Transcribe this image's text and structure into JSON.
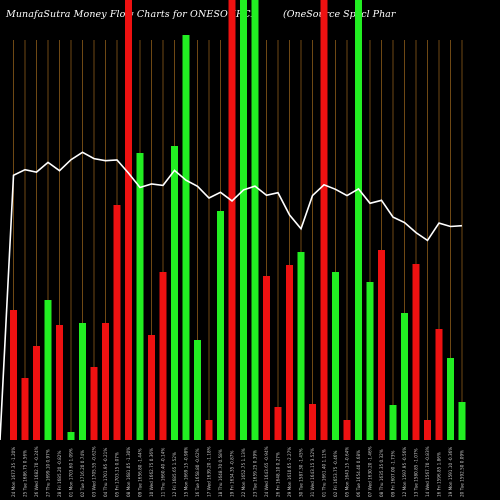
{
  "chart_data": {
    "type": "bar",
    "title": "MunafaSutra  Money Flow  Charts for ONESOURCE",
    "subtitle": "(OneSource   Specl Phar",
    "categories": [
      "Tue 20 Jan 2026",
      "Mon 19 Jan 2026",
      "Fri 16 Jan 2026",
      "Wed 14 Jan 2026",
      "Tue 13 Jan 2026",
      "Mon 12 Jan 2026",
      "Fri 09 Jan 2026",
      "Thu 08 Jan 2026",
      "Wed 07 Jan 2026",
      "Tue 06 Jan 2026",
      "Mon 05 Jan 2026",
      "Fri 02 Jan 2026",
      "Thu 01 Jan 2026",
      "Wed 31 Dec 2025",
      "Tue 30 Dec 2025",
      "Mon 29 Dec 2025",
      "Fri 26 Dec 2025",
      "Wed 24 Dec 2025",
      "Tue 23 Dec 2025",
      "Mon 22 Dec 2025",
      "Fri 19 Dec 2025",
      "Thu 18 Dec 2025",
      "Wed 17 Dec 2025",
      "Tue 16 Dec 2025",
      "Mon 15 Dec 2025",
      "Fri 12 Dec 2025",
      "Thu 11 Dec 2025",
      "Wed 10 Dec 2025",
      "Tue 09 Dec 2025",
      "Mon 08 Dec 2025",
      "Fri 05 Dec 2025",
      "Thu 04 Dec 2025",
      "Wed 03 Dec 2025",
      "Tue 02 Dec 2025",
      "Mon 01 Dec 2025",
      "Fri 28 Nov 2025",
      "Thu 27 Nov 2025",
      "Wed 26 Nov 2025",
      "Tue 25 Nov 2025",
      "Mon 24 Nov 2025"
    ],
    "tick_labels": [
      "20 Tue 1592.50 0.09%",
      "19 Mon 1591.10 -0.36%",
      "16 Fri 1596.85 1.86%",
      "14 Wed 1567.70 -0.83%",
      "13 Tue 1580.85 -1.07%",
      "12 Mon 1597.95 -0.56%",
      "09 Fri 1607.00 -1.73%",
      "08 Thu 1635.35 0.32%",
      "07 Wed 1630.20 -1.46%",
      "06 Tue 1654.40 0.68%",
      "05 Mon 1643.15 -0.64%",
      "02 Fri 1653.75 -0.46%",
      "01 Thu 1661.40 1.11%",
      "31 Wed 1643.15 3.52%",
      "30 Tue 1587.30 -1.45%",
      "29 Mon 1610.65 -2.27%",
      "26 Fri 1648.10 0.27%",
      "24 Wed 1643.65 -0.94%",
      "23 Tue 1659.25 0.39%",
      "22 Mon 1652.75 1.13%",
      "19 Fri 1634.35 -0.87%",
      "18 Thu 1648.70 0.58%",
      "17 Wed 1639.20 -1.18%",
      "16 Tue 1658.80 -0.62%",
      "15 Mon 1669.15 -0.98%",
      "12 Fri 1685.65 1.52%",
      "11 Thu 1660.40 -0.14%",
      "10 Wed 1662.75 0.36%",
      "09 Tue 1656.80 -1.44%",
      "08 Mon 1681.05 -1.30%",
      "05 Fri 1703.15 0.07%",
      "04 Thu 1701.95 -0.21%",
      "03 Wed 1705.55 -0.62%",
      "02 Tue 1716.20 0.74%",
      "01 Mon 1703.60 1.09%",
      "28 Fri 1685.20 -0.82%",
      "27 Thu 1699.10 0.97%",
      "26 Wed 1682.70 -0.24%",
      "25 Tue 1686.75 0.56%",
      "24 Mon 1677.35 -1.20%"
    ],
    "series": [
      {
        "values": [
          61,
          18,
          34,
          36,
          28,
          6,
          24,
          65,
          16,
          63,
          68,
          85,
          44,
          28,
          80,
          82,
          72,
          16,
          180,
          58,
          57,
          58,
          92,
          58,
          51,
          79,
          77,
          26,
          100,
          93,
          90,
          90,
          67,
          89,
          90,
          52,
          68,
          59,
          73,
          57
        ],
        "colors": [
          "red",
          "red",
          "red",
          "green",
          "red",
          "green",
          "green",
          "red",
          "red",
          "red",
          "red",
          "green",
          "red",
          "red",
          "green",
          "green",
          "green",
          "red",
          "green",
          "red",
          "green",
          "green",
          "red",
          "red",
          "red",
          "green",
          "red",
          "red",
          "green",
          "red",
          "green",
          "green",
          "red",
          "green",
          "green",
          "red",
          "red",
          "red",
          "green",
          "green"
        ]
      }
    ],
    "price_line": [
      1592.5,
      1591.1,
      1596.85,
      1567.7,
      1580.85,
      1597.95,
      1607.0,
      1635.35,
      1630.2,
      1654.4,
      1643.15,
      1653.75,
      1661.4,
      1643.15,
      1587.3,
      1610.65,
      1648.1,
      1643.65,
      1659.25,
      1652.75,
      1634.35,
      1648.7,
      1639.2,
      1658.8,
      1669.15,
      1685.65,
      1660.4,
      1662.75,
      1656.8,
      1681.05,
      1703.15,
      1701.95,
      1705.55,
      1716.2,
      1703.6,
      1685.2,
      1699.1,
      1682.7,
      1686.75,
      1677.35
    ],
    "bar_values_reversed_order_note": "",
    "bar_heights": [
      130,
      62,
      94,
      140,
      115,
      8,
      117,
      73,
      117,
      235,
      440,
      287,
      105,
      168,
      294,
      405,
      100,
      20,
      229,
      440,
      440,
      440,
      164,
      33,
      175,
      188,
      36,
      440,
      168,
      20,
      440,
      158,
      190,
      35,
      127,
      176,
      20,
      111,
      82,
      38
    ],
    "grid": true,
    "colors": {
      "background": "#000000",
      "grid": "#8b5a1a",
      "up": "#22ee22",
      "down": "#ee1111",
      "line": "#ffffff",
      "text": "#ffffff"
    }
  }
}
